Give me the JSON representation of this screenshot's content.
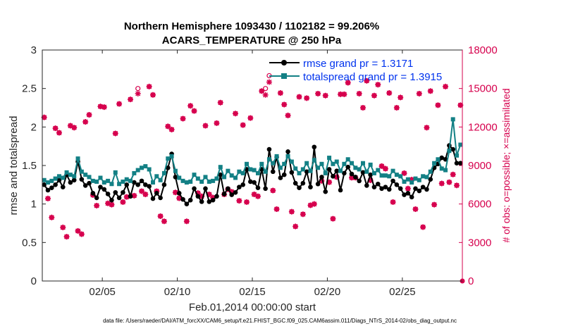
{
  "chart_data": {
    "type": "line",
    "title": [
      "Northern Hemisphere 1093430 / 1102182 = 99.206%",
      "ACARS_TEMPERATURE @ 250 hPa"
    ],
    "xlabel": "Feb.01,2014 00:00:00 start",
    "ylabel_left": "rmse and totalspread",
    "ylabel_right": "# of obs: o=possible; ×=assimilated",
    "xlim": [
      1.0,
      29.0
    ],
    "ylim_left": [
      0,
      3
    ],
    "ylim_right": [
      0,
      18000
    ],
    "x_ticks": [
      5,
      10,
      15,
      20,
      25
    ],
    "x_tick_labels": [
      "02/05",
      "02/10",
      "02/15",
      "02/20",
      "02/25"
    ],
    "y_ticks_left": [
      "0",
      "0.5",
      "1",
      "1.5",
      "2",
      "2.5",
      "3"
    ],
    "y_ticks_right": [
      "0",
      "3000",
      "6000",
      "9000",
      "12000",
      "15000",
      "18000"
    ],
    "legend_position": "top-right",
    "footer": "data file: /Users/raeder/DAI/ATM_forcXX/CAM6_setup/f.e21.FHIST_BGC.f09_025.CAM6assim.011/Diags_NTrS_2014-02/obs_diag_output.nc",
    "x": [
      1.125,
      1.375,
      1.625,
      1.875,
      2.125,
      2.375,
      2.625,
      2.875,
      3.125,
      3.375,
      3.625,
      3.875,
      4.125,
      4.375,
      4.625,
      4.875,
      5.125,
      5.375,
      5.625,
      5.875,
      6.125,
      6.375,
      6.625,
      6.875,
      7.125,
      7.375,
      7.625,
      7.875,
      8.125,
      8.375,
      8.625,
      8.875,
      9.125,
      9.375,
      9.625,
      9.875,
      10.125,
      10.375,
      10.625,
      10.875,
      11.125,
      11.375,
      11.625,
      11.875,
      12.125,
      12.375,
      12.625,
      12.875,
      13.125,
      13.375,
      13.625,
      13.875,
      14.125,
      14.375,
      14.625,
      14.875,
      15.125,
      15.375,
      15.625,
      15.875,
      16.125,
      16.375,
      16.625,
      16.875,
      17.125,
      17.375,
      17.625,
      17.875,
      18.125,
      18.375,
      18.625,
      18.875,
      19.125,
      19.375,
      19.625,
      19.875,
      20.125,
      20.375,
      20.625,
      20.875,
      21.125,
      21.375,
      21.625,
      21.875,
      22.125,
      22.375,
      22.625,
      22.875,
      23.125,
      23.375,
      23.625,
      23.875,
      24.125,
      24.375,
      24.625,
      24.875,
      25.125,
      25.375,
      25.625,
      25.875,
      26.125,
      26.375,
      26.625,
      26.875,
      27.125,
      27.375,
      27.625,
      27.875,
      28.125,
      28.375,
      28.625,
      28.875
    ],
    "series": [
      {
        "name": "rmse grand pr = 1.3171",
        "color": "#000000",
        "marker": "dot",
        "axis": "left",
        "values": [
          1.25,
          1.18,
          1.21,
          1.25,
          1.31,
          1.22,
          1.38,
          1.28,
          1.31,
          1.55,
          1.32,
          1.24,
          1.27,
          1.14,
          1.08,
          1.22,
          1.19,
          1.13,
          1.05,
          1.15,
          1.08,
          1.15,
          1.25,
          1.1,
          1.28,
          1.25,
          1.3,
          1.25,
          1.23,
          1.07,
          1.14,
          1.08,
          1.25,
          1.47,
          1.65,
          1.35,
          1.14,
          1.06,
          1.0,
          1.05,
          1.2,
          1.1,
          1.03,
          1.2,
          1.03,
          1.05,
          1.1,
          1.38,
          1.13,
          1.2,
          1.12,
          1.15,
          1.22,
          1.25,
          1.45,
          1.29,
          1.28,
          1.21,
          1.45,
          1.2,
          1.71,
          1.42,
          1.61,
          1.34,
          1.38,
          1.68,
          1.41,
          1.27,
          1.21,
          1.27,
          1.42,
          1.22,
          1.74,
          1.26,
          1.35,
          1.16,
          1.45,
          1.36,
          1.43,
          1.18,
          1.4,
          1.48,
          1.39,
          1.35,
          1.3,
          1.41,
          1.24,
          1.38,
          1.22,
          1.26,
          1.2,
          1.22,
          1.19,
          1.3,
          1.25,
          1.2,
          1.12,
          1.14,
          1.09,
          1.2,
          1.17,
          1.22,
          1.19,
          1.32,
          1.47,
          1.52,
          1.6,
          1.58,
          1.76,
          1.71,
          1.53,
          1.53
        ]
      },
      {
        "name": "totalspread grand pr = 1.3915",
        "color": "#138085",
        "marker": "square",
        "axis": "left",
        "values": [
          1.31,
          1.28,
          1.3,
          1.33,
          1.36,
          1.34,
          1.41,
          1.38,
          1.36,
          1.59,
          1.42,
          1.38,
          1.35,
          1.3,
          1.29,
          1.34,
          1.28,
          1.3,
          1.26,
          1.41,
          1.26,
          1.29,
          1.32,
          1.3,
          1.4,
          1.44,
          1.47,
          1.49,
          1.45,
          1.28,
          1.36,
          1.31,
          1.4,
          1.59,
          1.62,
          1.43,
          1.34,
          1.3,
          1.28,
          1.29,
          1.38,
          1.33,
          1.29,
          1.35,
          1.29,
          1.3,
          1.33,
          1.48,
          1.35,
          1.43,
          1.37,
          1.34,
          1.42,
          1.4,
          1.52,
          1.45,
          1.44,
          1.4,
          1.52,
          1.42,
          1.58,
          1.53,
          1.62,
          1.47,
          1.52,
          1.62,
          1.55,
          1.46,
          1.4,
          1.45,
          1.53,
          1.43,
          1.57,
          1.47,
          1.52,
          1.4,
          1.6,
          1.52,
          1.55,
          1.43,
          1.52,
          1.58,
          1.53,
          1.47,
          1.45,
          1.53,
          1.42,
          1.51,
          1.4,
          1.44,
          1.37,
          1.37,
          1.36,
          1.43,
          1.38,
          1.36,
          1.29,
          1.32,
          1.28,
          1.33,
          1.31,
          1.36,
          1.35,
          1.42,
          1.53,
          1.58,
          1.46,
          1.44,
          1.69,
          2.1,
          1.63,
          1.77
        ]
      },
      {
        "name": "possible obs",
        "color": "#d6004d",
        "marker": "o",
        "axis": "right",
        "values": [
          12750,
          6425,
          4950,
          11900,
          11550,
          4175,
          3450,
          12100,
          11950,
          3900,
          3650,
          12400,
          12950,
          6700,
          5875,
          13600,
          13550,
          6050,
          5950,
          11500,
          13800,
          6150,
          6550,
          14150,
          6650,
          15000,
          7000,
          6750,
          15150,
          14500,
          7000,
          5050,
          4650,
          12050,
          11800,
          6900,
          6450,
          12650,
          4650,
          13650,
          13250,
          6850,
          6600,
          12100,
          6750,
          6500,
          12300,
          13900,
          6750,
          7150,
          6950,
          13050,
          6250,
          12150,
          6150,
          12700,
          6750,
          6600,
          14800,
          15000,
          16000,
          7050,
          5600,
          14650,
          13750,
          12900,
          5400,
          4250,
          14350,
          5200,
          14250,
          5900,
          6000,
          14600,
          7800,
          14450,
          7700,
          4850,
          8100,
          14550,
          14550,
          15450,
          8050,
          8050,
          14600,
          13500,
          15600,
          7850,
          14450,
          15300,
          8950,
          8750,
          14650,
          6150,
          13500,
          14300,
          8400,
          7200,
          7900,
          5600,
          14600,
          4200,
          11950,
          14800,
          5950,
          13700,
          7600,
          15150,
          7700,
          8300,
          7450,
          13700
        ]
      },
      {
        "name": "assimilated obs",
        "color": "#d6004d",
        "marker": "x",
        "axis": "right",
        "values": [
          12750,
          6425,
          4950,
          11900,
          11550,
          4175,
          3450,
          12100,
          11950,
          3900,
          3650,
          12400,
          12950,
          6700,
          5875,
          13600,
          13550,
          6050,
          5950,
          11500,
          13800,
          6150,
          6550,
          14150,
          6650,
          14600,
          7000,
          6750,
          15150,
          14500,
          7000,
          5050,
          4650,
          12050,
          11800,
          6900,
          6450,
          12650,
          4650,
          13650,
          13250,
          6850,
          6600,
          12100,
          6750,
          6500,
          12300,
          13900,
          6750,
          7150,
          6950,
          13050,
          6250,
          12150,
          6150,
          12700,
          6750,
          6600,
          14800,
          14500,
          15500,
          7050,
          5600,
          14650,
          13750,
          12900,
          5400,
          4250,
          14350,
          5200,
          14250,
          5900,
          6000,
          14600,
          7800,
          14450,
          7700,
          4850,
          8100,
          14550,
          14550,
          15450,
          8050,
          8050,
          14600,
          13500,
          15600,
          7850,
          14450,
          15300,
          8950,
          8750,
          14650,
          6150,
          13500,
          14300,
          8400,
          7200,
          7900,
          5600,
          14600,
          4200,
          11950,
          14800,
          5950,
          13700,
          7600,
          15150,
          7700,
          8300,
          7450,
          13700
        ]
      }
    ],
    "right_axis_zero_marker": {
      "x": 29.0,
      "value": 0
    }
  }
}
